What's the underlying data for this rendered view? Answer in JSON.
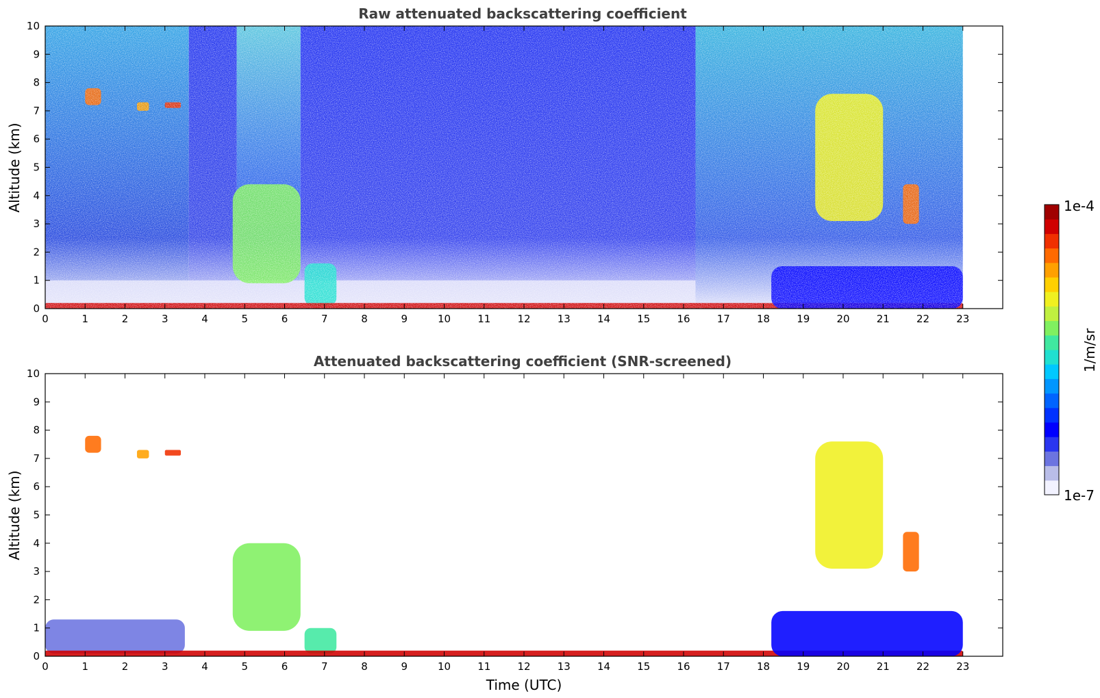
{
  "colors": {
    "colormap": [
      "#f2f2ff",
      "#b9bde8",
      "#6c74e0",
      "#2a36f0",
      "#0000ff",
      "#0032ff",
      "#0064ff",
      "#0096ff",
      "#00c8ff",
      "#20e0d0",
      "#40e8a0",
      "#80f060",
      "#c0f040",
      "#f0f020",
      "#ffd000",
      "#ffa000",
      "#ff6a00",
      "#f03000",
      "#d00000",
      "#a00000"
    ],
    "frame": "#000000",
    "title": "#404040"
  },
  "chart_data": [
    {
      "type": "heatmap",
      "title": "Raw attenuated backscattering coefficient",
      "xlabel": "",
      "ylabel": "Altitude (km)",
      "xlim": [
        0,
        24
      ],
      "ylim": [
        0,
        10
      ],
      "xticks": [
        "0",
        "1",
        "2",
        "3",
        "4",
        "5",
        "6",
        "7",
        "8",
        "9",
        "10",
        "11",
        "12",
        "13",
        "14",
        "15",
        "16",
        "17",
        "18",
        "19",
        "20",
        "21",
        "22",
        "23"
      ],
      "yticks": [
        "0",
        "1",
        "2",
        "3",
        "4",
        "5",
        "6",
        "7",
        "8",
        "9",
        "10"
      ],
      "data_extent_x": [
        0,
        23
      ],
      "features": [
        {
          "x": [
            1.0,
            1.4
          ],
          "y": [
            7.2,
            7.8
          ],
          "level": 0.85
        },
        {
          "x": [
            2.3,
            2.6
          ],
          "y": [
            7.0,
            7.3
          ],
          "level": 0.8
        },
        {
          "x": [
            3.0,
            3.4
          ],
          "y": [
            7.1,
            7.3
          ],
          "level": 0.9
        },
        {
          "x": [
            4.7,
            6.4
          ],
          "y": [
            0.9,
            4.4
          ],
          "level": 0.6
        },
        {
          "x": [
            6.5,
            7.3
          ],
          "y": [
            0.1,
            1.6
          ],
          "level": 0.45
        },
        {
          "x": [
            0.0,
            23.0
          ],
          "y": [
            0.0,
            0.2
          ],
          "level": 0.95
        },
        {
          "x": [
            19.3,
            21.0
          ],
          "y": [
            3.1,
            7.6
          ],
          "level": 0.7
        },
        {
          "x": [
            21.5,
            21.9
          ],
          "y": [
            3.0,
            4.4
          ],
          "level": 0.85
        },
        {
          "x": [
            18.2,
            23.0
          ],
          "y": [
            0.0,
            1.5
          ],
          "level": 0.2
        }
      ]
    },
    {
      "type": "heatmap",
      "title": "Attenuated backscattering coefficient (SNR-screened)",
      "xlabel": "Time (UTC)",
      "ylabel": "Altitude (km)",
      "xlim": [
        0,
        24
      ],
      "ylim": [
        0,
        10
      ],
      "xticks": [
        "0",
        "1",
        "2",
        "3",
        "4",
        "5",
        "6",
        "7",
        "8",
        "9",
        "10",
        "11",
        "12",
        "13",
        "14",
        "15",
        "16",
        "17",
        "18",
        "19",
        "20",
        "21",
        "22",
        "23"
      ],
      "yticks": [
        "0",
        "1",
        "2",
        "3",
        "4",
        "5",
        "6",
        "7",
        "8",
        "9",
        "10"
      ],
      "data_extent_x": [
        0,
        23
      ],
      "features": [
        {
          "x": [
            1.0,
            1.4
          ],
          "y": [
            7.2,
            7.8
          ],
          "level": 0.85
        },
        {
          "x": [
            2.3,
            2.6
          ],
          "y": [
            7.0,
            7.3
          ],
          "level": 0.8
        },
        {
          "x": [
            3.0,
            3.4
          ],
          "y": [
            7.1,
            7.3
          ],
          "level": 0.9
        },
        {
          "x": [
            0.0,
            3.5
          ],
          "y": [
            0.1,
            1.3
          ],
          "level": 0.1
        },
        {
          "x": [
            4.7,
            6.4
          ],
          "y": [
            0.9,
            4.0
          ],
          "level": 0.6
        },
        {
          "x": [
            6.5,
            7.3
          ],
          "y": [
            0.1,
            1.0
          ],
          "level": 0.5
        },
        {
          "x": [
            0.0,
            23.0
          ],
          "y": [
            0.0,
            0.2
          ],
          "level": 0.95
        },
        {
          "x": [
            19.3,
            21.0
          ],
          "y": [
            3.1,
            7.6
          ],
          "level": 0.7
        },
        {
          "x": [
            21.5,
            21.9
          ],
          "y": [
            3.0,
            4.4
          ],
          "level": 0.85
        },
        {
          "x": [
            18.2,
            23.0
          ],
          "y": [
            0.0,
            1.6
          ],
          "level": 0.2
        }
      ]
    }
  ],
  "colorbar": {
    "label": "1/m/sr",
    "max_label": "1e-4",
    "min_label": "1e-7",
    "range": [
      1e-07,
      0.0001
    ],
    "scale": "log"
  }
}
